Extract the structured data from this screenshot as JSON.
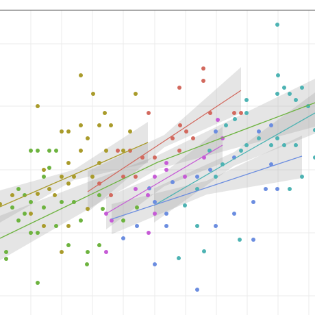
{
  "chart_data": {
    "type": "scatter",
    "xlim": [
      0,
      460
    ],
    "ylim": [
      0,
      460
    ],
    "xticks": [
      45,
      90,
      135,
      180,
      226,
      271,
      316,
      361,
      406,
      451
    ],
    "yticks": [
      28,
      120,
      212,
      305,
      396
    ],
    "grid": true,
    "series": [
      {
        "color": "#a99b2b",
        "x": [
          118,
          136,
          55,
          198,
          153,
          118,
          145,
          162,
          90,
          100,
          190,
          128,
          118,
          155,
          180,
          100,
          145,
          64,
          90,
          108,
          135,
          72,
          100,
          55,
          80,
          18,
          0,
          128,
          45,
          90,
          100,
          64
        ],
        "values": [
          350,
          323,
          305,
          323,
          295,
          277,
          277,
          277,
          268,
          268,
          268,
          258,
          240,
          240,
          240,
          222,
          222,
          212,
          202,
          202,
          202,
          184,
          192,
          177,
          175,
          175,
          162,
          155,
          148,
          92,
          130,
          130
        ],
        "fit_x": [
          0,
          108,
          216
        ],
        "fit_values": [
          158,
          205,
          252
        ],
        "fit_lower": [
          135,
          197,
          222
        ],
        "fit_upper": [
          182,
          212,
          282
        ]
      },
      {
        "color": "#6db33f",
        "x": [
          45,
          55,
          72,
          82,
          27,
          36,
          64,
          72,
          45,
          90,
          108,
          145,
          150,
          18,
          36,
          64,
          82,
          118,
          27,
          45,
          55,
          9,
          9,
          100,
          145,
          127,
          55,
          128,
          180,
          200
        ],
        "values": [
          240,
          240,
          240,
          240,
          184,
          175,
          202,
          215,
          165,
          165,
          165,
          175,
          155,
          157,
          148,
          157,
          130,
          138,
          138,
          120,
          120,
          92,
          82,
          102,
          102,
          74,
          47,
          92,
          138,
          157
        ],
        "fit_x": [
          0,
          230,
          460
        ],
        "fit_values": [
          112,
          223,
          310
        ],
        "fit_lower": [
          80,
          213,
          275
        ],
        "fit_upper": [
          145,
          233,
          345
        ]
      },
      {
        "color": "#d2695e",
        "x": [
          297,
          297,
          262,
          217,
          307,
          342,
          352,
          263,
          272,
          252,
          282,
          172,
          190,
          262,
          208,
          226,
          180,
          145,
          162,
          198
        ],
        "values": [
          360,
          342,
          332,
          295,
          295,
          295,
          295,
          277,
          268,
          258,
          258,
          240,
          240,
          240,
          230,
          230,
          202,
          192,
          175,
          202
        ],
        "fit_x": [
          128,
          240,
          352
        ],
        "fit_values": [
          180,
          254,
          328
        ],
        "fit_lower": [
          150,
          245,
          295
        ],
        "fit_upper": [
          210,
          263,
          362
        ]
      },
      {
        "color": "#c65bd6",
        "x": [
          318,
          325,
          298,
          243,
          226,
          270,
          198,
          216,
          155,
          163,
          217,
          155,
          226,
          243
        ],
        "values": [
          285,
          258,
          230,
          222,
          202,
          202,
          184,
          175,
          148,
          138,
          120,
          92,
          148,
          212
        ],
        "fit_x": [
          155,
          240,
          325
        ],
        "fit_values": [
          148,
          198,
          248
        ],
        "fit_lower": [
          125,
          188,
          222
        ],
        "fit_upper": [
          172,
          208,
          275
        ]
      },
      {
        "color": "#4db3b3",
        "x": [
          405,
          406,
          415,
          423,
          441,
          405,
          432,
          450,
          360,
          360,
          343,
          330,
          460,
          378,
          405,
          396,
          415,
          432,
          460,
          352,
          360,
          306,
          325,
          315,
          288,
          270,
          288,
          261,
          298,
          350,
          441,
          423
        ],
        "values": [
          424,
          350,
          332,
          323,
          332,
          323,
          314,
          305,
          314,
          295,
          286,
          277,
          270,
          258,
          258,
          248,
          248,
          248,
          230,
          240,
          248,
          240,
          220,
          202,
          184,
          160,
          130,
          83,
          93,
          110,
          202,
          184
        ],
        "fit_x": [
          225,
          342,
          460
        ],
        "fit_values": [
          160,
          228,
          295
        ],
        "fit_lower": [
          135,
          218,
          265
        ],
        "fit_upper": [
          185,
          238,
          325
        ]
      },
      {
        "color": "#6b8de0",
        "x": [
          315,
          378,
          396,
          342,
          307,
          288,
          252,
          218,
          226,
          243,
          200,
          180,
          226,
          288,
          315,
          342,
          370,
          388,
          405,
          370,
          396,
          243
        ],
        "values": [
          268,
          268,
          277,
          230,
          212,
          202,
          194,
          185,
          165,
          148,
          130,
          112,
          74,
          37,
          130,
          148,
          165,
          184,
          184,
          110,
          220,
          130
        ],
        "fit_x": [
          163,
          302,
          441
        ],
        "fit_values": [
          140,
          186,
          232
        ],
        "fit_lower": [
          118,
          176,
          200
        ],
        "fit_upper": [
          162,
          196,
          262
        ]
      }
    ]
  }
}
